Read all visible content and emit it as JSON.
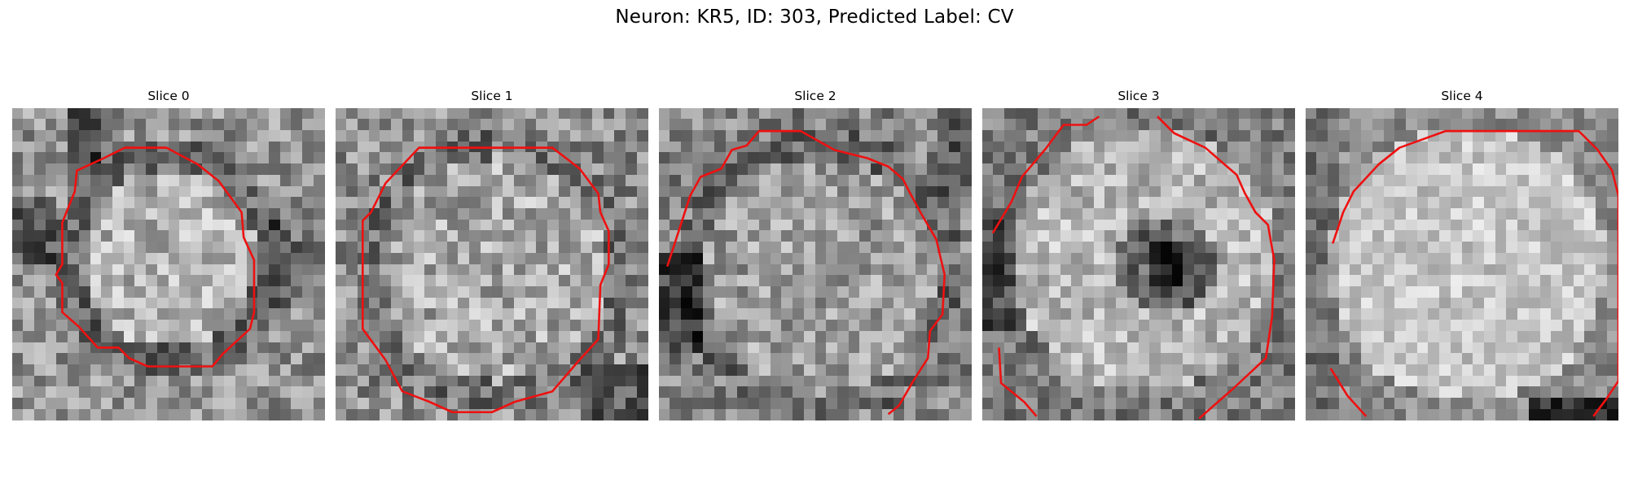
{
  "figure": {
    "title": "Neuron: KR5, ID: 303, Predicted Label: CV"
  },
  "panels": [
    {
      "title": "Slice 0",
      "shade": "dark-ring",
      "outline": "closed"
    },
    {
      "title": "Slice 1",
      "shade": "light-center",
      "outline": "closed"
    },
    {
      "title": "Slice 2",
      "shade": "faint-ring",
      "outline": "clipped"
    },
    {
      "title": "Slice 3",
      "shade": "dark-spot",
      "outline": "clipped"
    },
    {
      "title": "Slice 4",
      "shade": "bright-disk",
      "outline": "clipped"
    }
  ],
  "colors": {
    "contour": "#ee1111",
    "background": "#ffffff"
  }
}
